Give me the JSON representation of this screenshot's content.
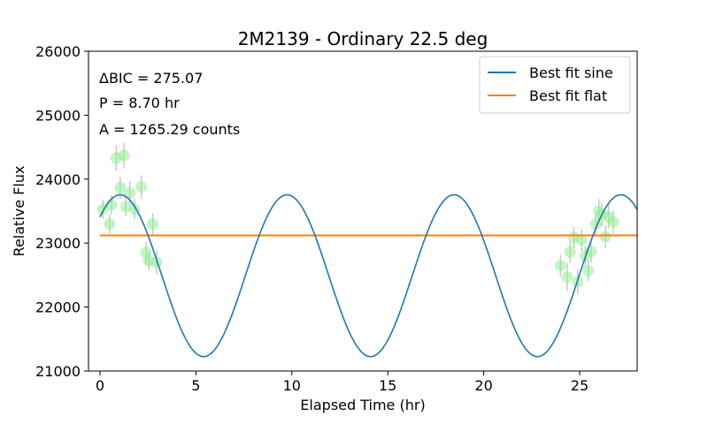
{
  "chart_data": {
    "type": "scatter",
    "title": "2M2139 - Ordinary 22.5 deg",
    "xlabel": "Elapsed Time (hr)",
    "ylabel": "Relative Flux",
    "xlim": [
      -0.6,
      28.0
    ],
    "ylim": [
      21000,
      26000
    ],
    "x_ticks": [
      0,
      5,
      10,
      15,
      20,
      25
    ],
    "y_ticks": [
      21000,
      22000,
      23000,
      24000,
      25000,
      26000
    ],
    "x_tick_labels": [
      "0",
      "5",
      "10",
      "15",
      "20",
      "25"
    ],
    "y_tick_labels": [
      "21000",
      "22000",
      "23000",
      "24000",
      "25000",
      "26000"
    ],
    "grid": false,
    "legend_position": "top-right",
    "annotations": [
      "ΔBIC = 275.07",
      "P = 8.70 hr",
      "A = 1265.29 counts"
    ],
    "sine_fit": {
      "label": "Best fit sine",
      "color": "#1f77b4",
      "period": 8.7,
      "amplitude": 1265.29,
      "offset": 22490,
      "peak_time": 1.05,
      "x_range": [
        0.0,
        28.0
      ]
    },
    "flat_fit": {
      "label": "Best fit flat",
      "color": "#ff7f0e",
      "value": 23120,
      "x_range": [
        0.0,
        28.0
      ]
    },
    "points": {
      "color": "#90ee90",
      "error_color": "#c8c8c8",
      "x": [
        0.15,
        0.5,
        0.6,
        0.85,
        1.05,
        1.25,
        1.35,
        1.55,
        1.8,
        2.15,
        2.4,
        2.55,
        2.75,
        2.95,
        24.0,
        24.35,
        24.5,
        24.7,
        24.9,
        25.1,
        25.3,
        25.45,
        25.6,
        25.85,
        26.0,
        26.15,
        26.35,
        26.5,
        26.75
      ],
      "y": [
        23530,
        23300,
        23600,
        24330,
        23870,
        24370,
        23570,
        23790,
        23530,
        23880,
        22850,
        22720,
        23300,
        22700,
        22650,
        22470,
        22860,
        23090,
        22400,
        23050,
        22800,
        22570,
        22870,
        23300,
        23500,
        23450,
        23100,
        23410,
        23330
      ],
      "err": [
        150,
        150,
        150,
        200,
        170,
        200,
        150,
        170,
        160,
        180,
        170,
        160,
        160,
        180,
        170,
        220,
        170,
        170,
        200,
        170,
        160,
        160,
        170,
        170,
        190,
        190,
        180,
        190,
        180
      ]
    }
  }
}
